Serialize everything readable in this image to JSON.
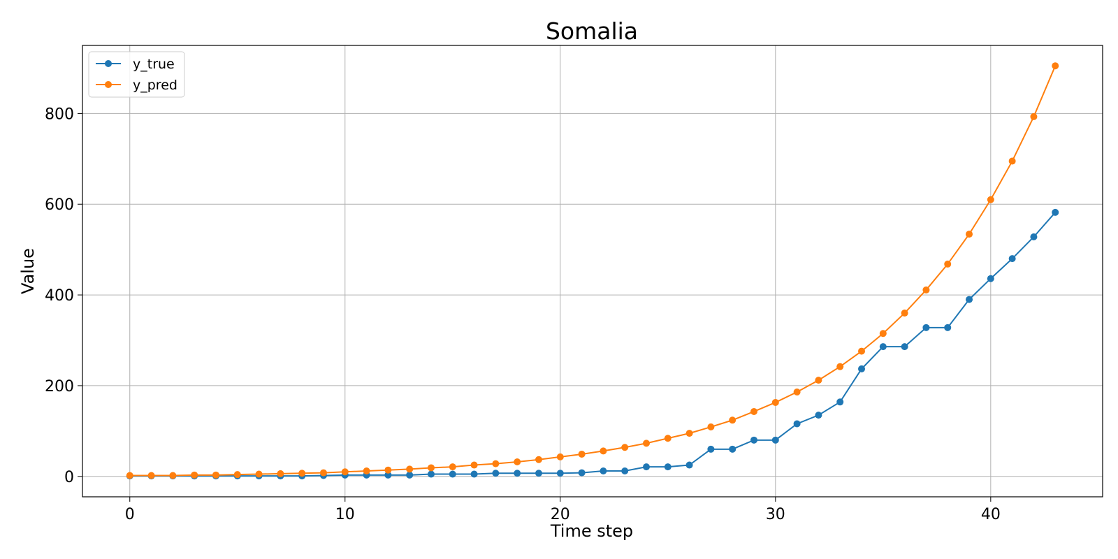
{
  "chart_data": {
    "type": "line",
    "title": "Somalia",
    "xlabel": "Time step",
    "ylabel": "Value",
    "xlim": [
      -2.2,
      45.2
    ],
    "ylim": [
      -45,
      950
    ],
    "xticks": [
      0,
      10,
      20,
      30,
      40
    ],
    "yticks": [
      0,
      200,
      400,
      600,
      800
    ],
    "grid": true,
    "legend_position": "top-left",
    "x": [
      0,
      1,
      2,
      3,
      4,
      5,
      6,
      7,
      8,
      9,
      10,
      11,
      12,
      13,
      14,
      15,
      16,
      17,
      18,
      19,
      20,
      21,
      22,
      23,
      24,
      25,
      26,
      27,
      28,
      29,
      30,
      31,
      32,
      33,
      34,
      35,
      36,
      37,
      38,
      39,
      40,
      41,
      42,
      43
    ],
    "series": [
      {
        "name": "y_true",
        "color": "#1f77b4",
        "values": [
          1,
          1,
          1,
          1,
          1,
          1,
          1,
          1,
          1,
          2,
          3,
          3,
          3,
          3,
          5,
          5,
          5,
          7,
          7,
          7,
          7,
          8,
          12,
          12,
          21,
          21,
          25,
          60,
          60,
          80,
          80,
          116,
          135,
          164,
          237,
          286,
          286,
          328,
          328,
          390,
          436,
          480,
          528,
          582
        ]
      },
      {
        "name": "y_pred",
        "color": "#ff7f0e",
        "values": [
          2,
          2,
          2,
          3,
          3,
          4,
          5,
          6,
          7,
          8,
          10,
          12,
          14,
          16,
          19,
          21,
          25,
          28,
          32,
          37,
          43,
          49,
          56,
          64,
          73,
          84,
          95,
          109,
          124,
          143,
          163,
          186,
          212,
          242,
          276,
          315,
          360,
          411,
          468,
          534,
          610,
          695,
          793,
          905
        ]
      }
    ]
  }
}
